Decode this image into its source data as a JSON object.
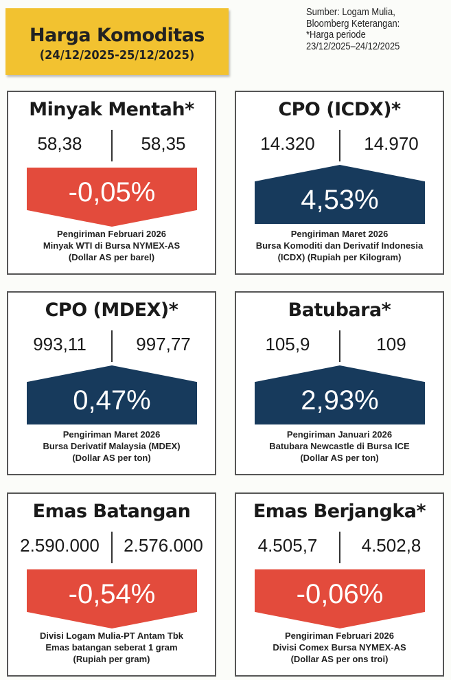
{
  "header": {
    "title": "Harga Komoditas",
    "date_range": "(24/12/2025-25/12/2025)"
  },
  "source_note": [
    "Sumber: Logam Mulia,",
    "Bloomberg  Keterangan:",
    "*Harga periode",
    "23/12/2025–24/12/2025"
  ],
  "colors": {
    "down": "#e34b3c",
    "up": "#173a5c",
    "header": "#f2c230"
  },
  "cards": [
    {
      "title": "Minyak Mentah*",
      "prev": "58,38",
      "curr": "58,35",
      "change": "-0,05%",
      "direction": "down",
      "desc": [
        "Pengiriman Februari 2026",
        "Minyak WTI di Bursa NYMEX-AS",
        "(Dollar AS per barel)"
      ]
    },
    {
      "title": "CPO (ICDX)*",
      "prev": "14.320",
      "curr": "14.970",
      "change": "4,53%",
      "direction": "up",
      "desc": [
        "Pengiriman Maret 2026",
        "Bursa Komoditi dan Derivatif Indonesia",
        "(ICDX) (Rupiah per Kilogram)"
      ]
    },
    {
      "title": "CPO (MDEX)*",
      "prev": "993,11",
      "curr": "997,77",
      "change": "0,47%",
      "direction": "up",
      "desc": [
        "Pengiriman Maret 2026",
        "Bursa Derivatif Malaysia (MDEX)",
        "(Dollar AS per ton)"
      ]
    },
    {
      "title": "Batubara*",
      "prev": "105,9",
      "curr": "109",
      "change": "2,93%",
      "direction": "up",
      "desc": [
        "Pengiriman Januari 2026",
        "Batubara Newcastle di Bursa ICE",
        "(Dollar AS per ton)"
      ]
    },
    {
      "title": "Emas Batangan",
      "prev": "2.590.000",
      "curr": "2.576.000",
      "change": "-0,54%",
      "direction": "down",
      "desc": [
        "Divisi Logam Mulia-PT Antam Tbk",
        "Emas batangan seberat 1 gram",
        "(Rupiah per gram)"
      ]
    },
    {
      "title": "Emas Berjangka*",
      "prev": "4.505,7",
      "curr": "4.502,8",
      "change": "-0,06%",
      "direction": "down",
      "desc": [
        "Pengiriman Februari 2026",
        "Divisi Comex Bursa NYMEX-AS",
        "(Dollar AS per ons troi)"
      ]
    }
  ]
}
